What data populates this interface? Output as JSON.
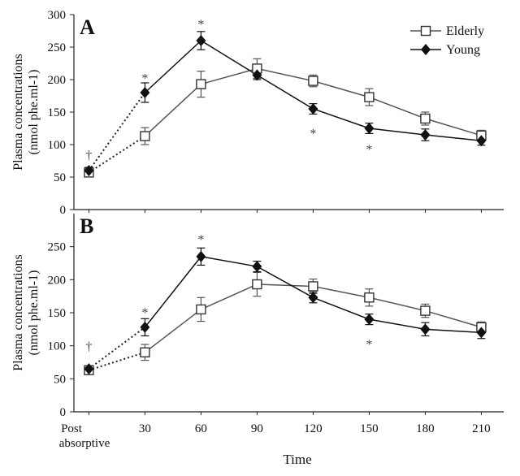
{
  "colors": {
    "elderly": "#555555",
    "young": "#111111",
    "axis": "#222222"
  },
  "chart_data": [
    {
      "type": "line",
      "panel_label": "A",
      "ylabel_line1": "Plasma concentrations",
      "ylabel_line2": "(nmol phe.ml-1)",
      "ylim": [
        0,
        300
      ],
      "yticks": [
        0,
        50,
        100,
        150,
        200,
        250,
        300
      ],
      "x": [
        0,
        30,
        60,
        90,
        120,
        150,
        180,
        210
      ],
      "series": [
        {
          "name": "Elderly",
          "marker": "open-square",
          "values": [
            57,
            113,
            193,
            217,
            198,
            173,
            140,
            114
          ],
          "errors": [
            6,
            13,
            20,
            15,
            9,
            13,
            10,
            8
          ]
        },
        {
          "name": "Young",
          "marker": "filled-diamond",
          "values": [
            60,
            180,
            260,
            207,
            155,
            125,
            115,
            106
          ],
          "errors": [
            5,
            15,
            14,
            7,
            8,
            8,
            9,
            7
          ]
        }
      ],
      "annotations": [
        {
          "text": "†",
          "x": 0,
          "y": 85
        },
        {
          "text": "*",
          "x": 30,
          "y": 203
        },
        {
          "text": "*",
          "x": 60,
          "y": 286
        },
        {
          "text": "*",
          "x": 120,
          "y": 118
        },
        {
          "text": "*",
          "x": 150,
          "y": 94
        }
      ]
    },
    {
      "type": "line",
      "panel_label": "B",
      "ylabel_line1": "Plasma concentrations",
      "ylabel_line2": "(nmol phe.ml-1)",
      "ylim": [
        0,
        300
      ],
      "yticks": [
        0,
        50,
        100,
        150,
        200,
        250
      ],
      "x": [
        0,
        30,
        60,
        90,
        120,
        150,
        180,
        210
      ],
      "series": [
        {
          "name": "Elderly",
          "marker": "open-square",
          "values": [
            63,
            90,
            155,
            193,
            190,
            173,
            153,
            128
          ],
          "errors": [
            5,
            12,
            18,
            18,
            11,
            13,
            10,
            8
          ]
        },
        {
          "name": "Young",
          "marker": "filled-diamond",
          "values": [
            65,
            128,
            235,
            220,
            173,
            140,
            125,
            120
          ],
          "errors": [
            4,
            13,
            13,
            8,
            8,
            8,
            10,
            9
          ]
        }
      ],
      "annotations": [
        {
          "text": "†",
          "x": 0,
          "y": 100
        },
        {
          "text": "*",
          "x": 30,
          "y": 151
        },
        {
          "text": "*",
          "x": 60,
          "y": 262
        },
        {
          "text": "*",
          "x": 150,
          "y": 103
        }
      ]
    }
  ],
  "legend": {
    "items": [
      "Elderly",
      "Young"
    ],
    "placement": "top-right"
  },
  "x_axis": {
    "ticks": [
      {
        "x": 0,
        "line1": "Post",
        "line2": "absorptive"
      },
      {
        "x": 30,
        "line1": "30",
        "line2": ""
      },
      {
        "x": 60,
        "line1": "60",
        "line2": ""
      },
      {
        "x": 90,
        "line1": "90",
        "line2": ""
      },
      {
        "x": 120,
        "line1": "120",
        "line2": ""
      },
      {
        "x": 150,
        "line1": "150",
        "line2": ""
      },
      {
        "x": 180,
        "line1": "180",
        "line2": ""
      },
      {
        "x": 210,
        "line1": "210",
        "line2": ""
      }
    ],
    "xlabel": "Time"
  }
}
